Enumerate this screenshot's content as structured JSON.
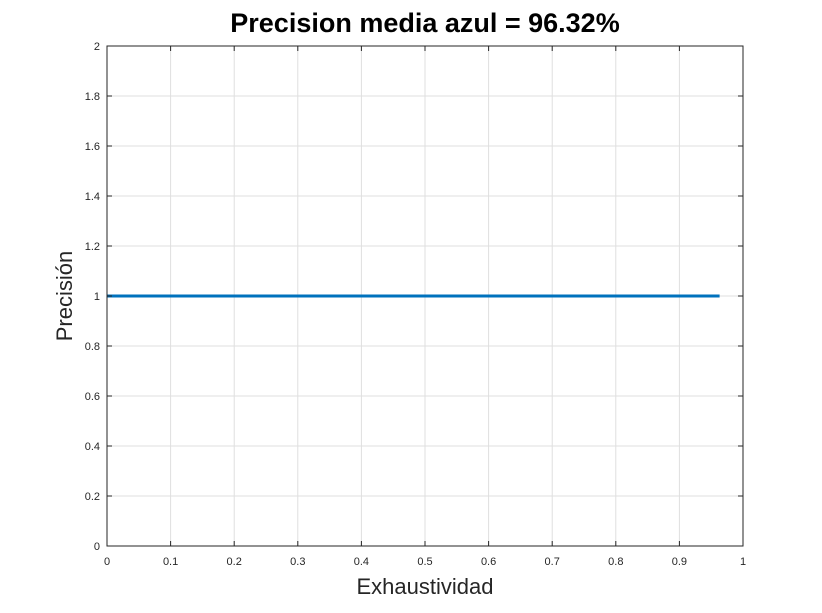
{
  "chart_data": {
    "type": "line",
    "title": "Precision media azul = 96.32%",
    "xlabel": "Exhaustividad",
    "ylabel": "Precisión",
    "xlim": [
      0,
      1
    ],
    "ylim": [
      0,
      2
    ],
    "xticks": [
      0,
      0.1,
      0.2,
      0.3,
      0.4,
      0.5,
      0.6,
      0.7,
      0.8,
      0.9,
      1
    ],
    "yticks": [
      0,
      0.2,
      0.4,
      0.6,
      0.8,
      1,
      1.2,
      1.4,
      1.6,
      1.8,
      2
    ],
    "grid": true,
    "series": [
      {
        "color": "#0072bd",
        "x": [
          0,
          0.9632
        ],
        "y": [
          1,
          1
        ]
      }
    ]
  }
}
